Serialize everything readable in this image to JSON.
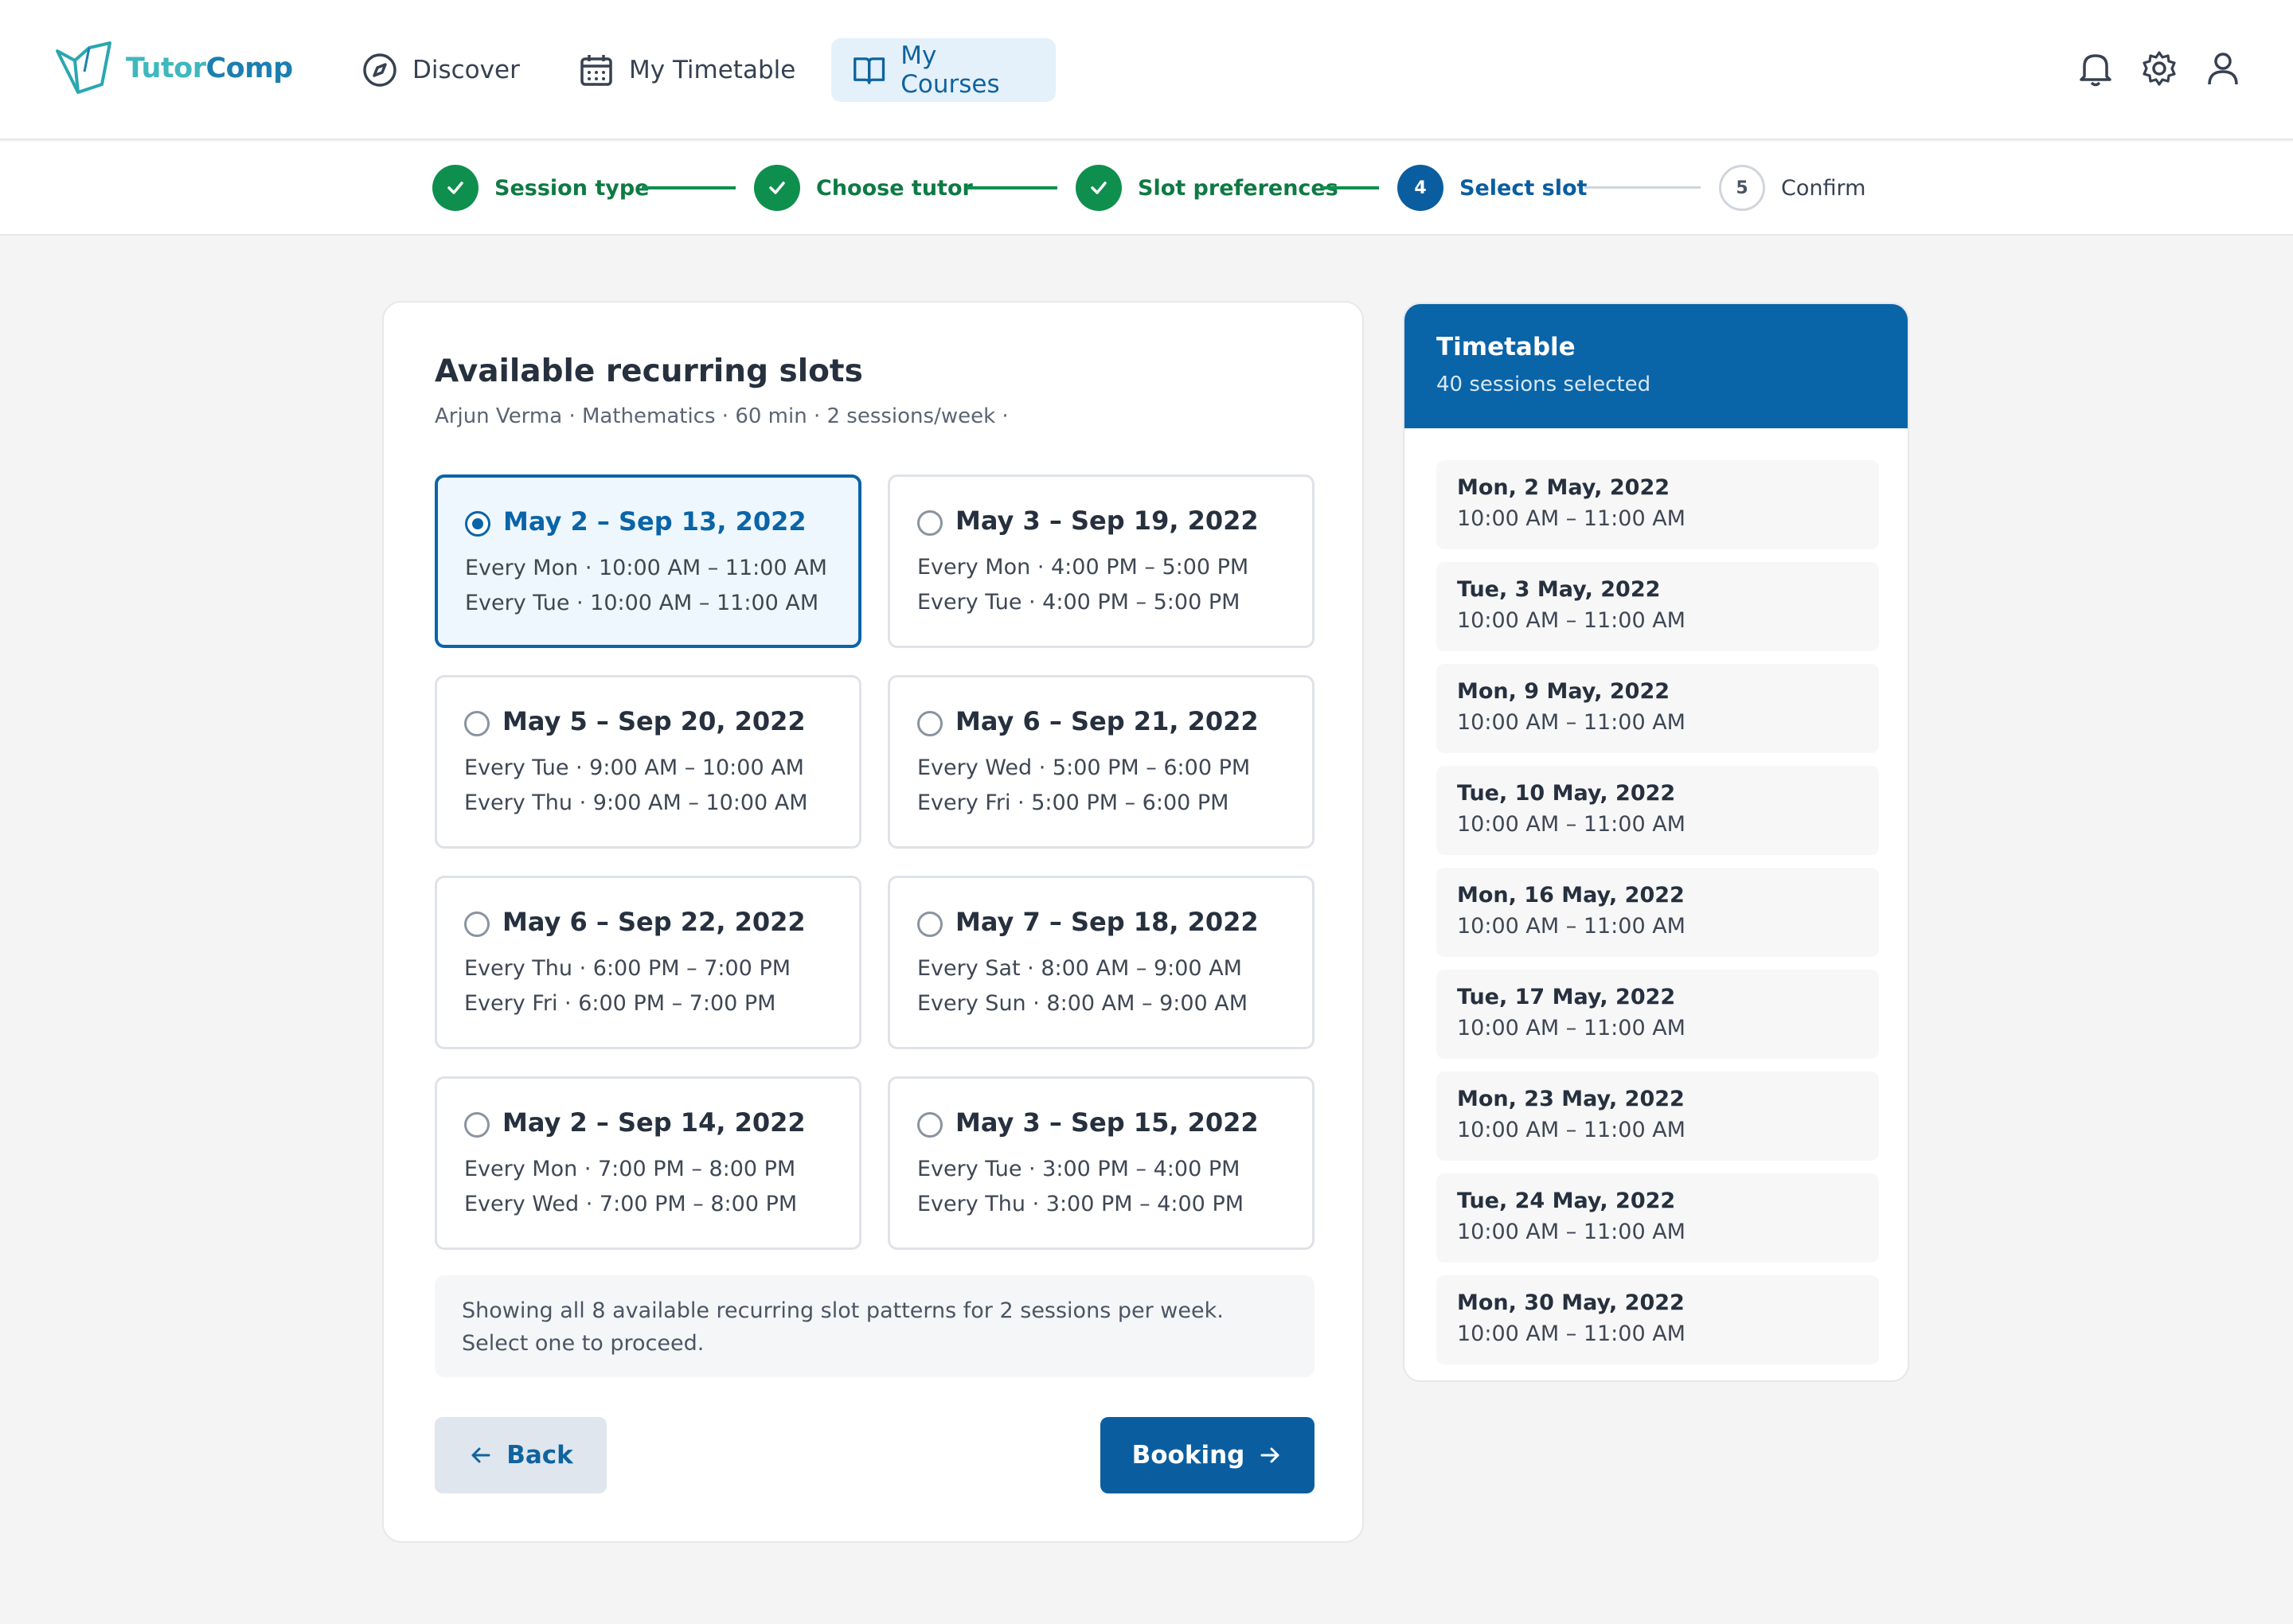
{
  "app": {
    "brand_part1": "Tutor",
    "brand_part2": "Comp"
  },
  "nav": {
    "discover": "Discover",
    "timetable": "My Timetable",
    "courses": "My Courses"
  },
  "steps": [
    {
      "label": "Session type",
      "state": "done"
    },
    {
      "label": "Choose tutor",
      "state": "done"
    },
    {
      "label": "Slot preferences",
      "state": "done"
    },
    {
      "label": "Select slot",
      "state": "current",
      "number": "4"
    },
    {
      "label": "Confirm",
      "state": "todo",
      "number": "5"
    }
  ],
  "main": {
    "title": "Available recurring slots",
    "subtitle": "Arjun Verma · Mathematics · 60 min · 2 sessions/week ·",
    "slots": [
      {
        "range": "May 2 – Sep 13, 2022",
        "line1": "Every Mon · 10:00 AM – 11:00 AM",
        "line2": "Every Tue · 10:00 AM – 11:00 AM",
        "selected": true
      },
      {
        "range": "May 3 – Sep 19, 2022",
        "line1": "Every Mon · 4:00 PM – 5:00 PM",
        "line2": "Every Tue · 4:00 PM – 5:00 PM",
        "selected": false
      },
      {
        "range": "May 5 – Sep 20, 2022",
        "line1": "Every Tue · 9:00 AM – 10:00 AM",
        "line2": "Every Thu · 9:00 AM – 10:00 AM",
        "selected": false
      },
      {
        "range": "May 6 – Sep 21, 2022",
        "line1": "Every Wed · 5:00 PM – 6:00 PM",
        "line2": "Every Fri · 5:00 PM – 6:00 PM",
        "selected": false
      },
      {
        "range": "May 6 – Sep 22, 2022",
        "line1": "Every Thu · 6:00 PM – 7:00 PM",
        "line2": "Every Fri · 6:00 PM – 7:00 PM",
        "selected": false
      },
      {
        "range": "May 7 – Sep 18, 2022",
        "line1": "Every Sat · 8:00 AM – 9:00 AM",
        "line2": "Every Sun · 8:00 AM – 9:00 AM",
        "selected": false
      },
      {
        "range": "May 2 – Sep 14, 2022",
        "line1": "Every Mon · 7:00 PM – 8:00 PM",
        "line2": "Every Wed · 7:00 PM – 8:00 PM",
        "selected": false
      },
      {
        "range": "May 3 – Sep 15, 2022",
        "line1": "Every Tue · 3:00 PM – 4:00 PM",
        "line2": "Every Thu · 3:00 PM – 4:00 PM",
        "selected": false
      }
    ],
    "info": "Showing all 8 available recurring slot patterns for 2 sessions per week. Select one to proceed.",
    "back_label": "Back",
    "booking_label": "Booking"
  },
  "timetable": {
    "title": "Timetable",
    "subtitle": "40 sessions selected",
    "items": [
      {
        "date": "Mon, 2 May, 2022",
        "time": "10:00 AM – 11:00 AM"
      },
      {
        "date": "Tue, 3 May, 2022",
        "time": "10:00 AM – 11:00 AM"
      },
      {
        "date": "Mon, 9 May, 2022",
        "time": "10:00 AM – 11:00 AM"
      },
      {
        "date": "Tue, 10 May, 2022",
        "time": "10:00 AM – 11:00 AM"
      },
      {
        "date": "Mon, 16 May, 2022",
        "time": "10:00 AM – 11:00 AM"
      },
      {
        "date": "Tue, 17 May, 2022",
        "time": "10:00 AM – 11:00 AM"
      },
      {
        "date": "Mon, 23 May, 2022",
        "time": "10:00 AM – 11:00 AM"
      },
      {
        "date": "Tue, 24 May, 2022",
        "time": "10:00 AM – 11:00 AM"
      },
      {
        "date": "Mon, 30 May, 2022",
        "time": "10:00 AM – 11:00 AM"
      }
    ]
  },
  "icons": {
    "logo": "book-logo-icon",
    "discover": "compass-icon",
    "timetable": "calendar-icon",
    "courses": "open-book-icon",
    "notifications": "bell-icon",
    "settings": "gear-icon",
    "profile": "user-icon",
    "step_done": "check-icon",
    "back": "arrow-left-icon",
    "booking": "arrow-right-icon"
  },
  "colors": {
    "primary": "#0a5ea0",
    "success": "#0e8f4e",
    "brand_teal": "#3fb8bd",
    "brand_blue": "#1b7fb0"
  }
}
